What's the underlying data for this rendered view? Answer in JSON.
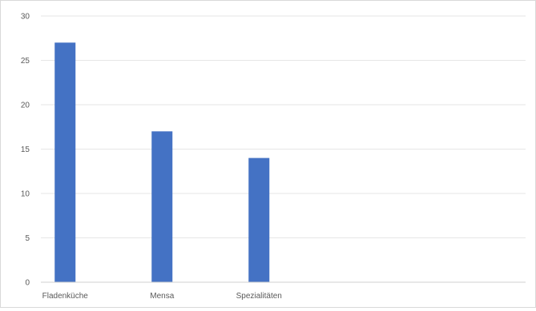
{
  "chart_data": {
    "type": "bar",
    "categories": [
      "Fladenküche",
      "Mensa",
      "Spezialitäten",
      "",
      ""
    ],
    "values": [
      27,
      17,
      14,
      null,
      null
    ],
    "ylim": [
      0,
      30
    ],
    "yticks": [
      0,
      5,
      10,
      15,
      20,
      25,
      30
    ],
    "grid": true,
    "legend": "none",
    "title": "",
    "xlabel": "",
    "ylabel": "",
    "colors": {
      "bar": "#4472C4",
      "grid": "#e6e6e6",
      "axis": "#d0d0d0",
      "text": "#595959"
    }
  }
}
